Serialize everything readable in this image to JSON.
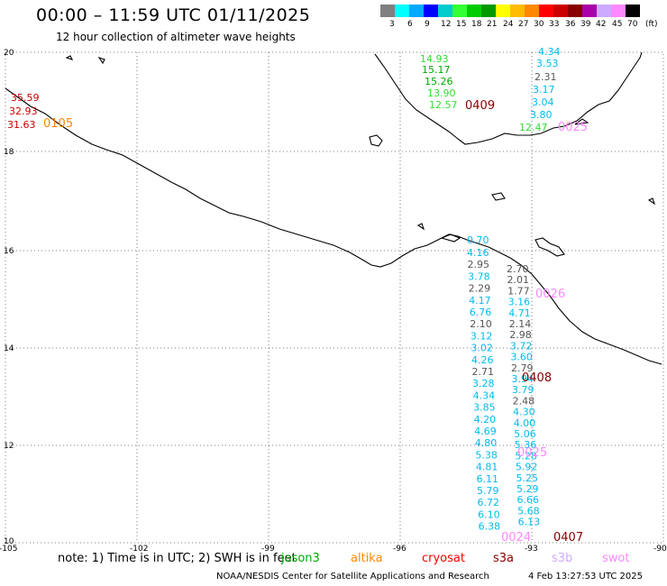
{
  "header": {
    "title": "00:00 – 11:59 UTC 01/11/2025",
    "subtitle": "12 hour collection of altimeter wave heights"
  },
  "legend": {
    "unit": "(ft)",
    "colors": [
      "#808080",
      "#00ffff",
      "#00aaff",
      "#0000ff",
      "#00cccc",
      "#33ff33",
      "#00cc00",
      "#009900",
      "#ffff00",
      "#ffbb00",
      "#ff8800",
      "#ff0000",
      "#cc0000",
      "#880000",
      "#aa00aa",
      "#ccaaff",
      "#ff88ff",
      "#000000"
    ],
    "labels": [
      "3",
      "6",
      "9",
      "12",
      "15",
      "18",
      "21",
      "24",
      "27",
      "30",
      "33",
      "36",
      "39",
      "42",
      "45",
      "70"
    ]
  },
  "axes": {
    "lon_labels": [
      "-105",
      "-102",
      "-99",
      "-96",
      "-93",
      "-90"
    ],
    "lat_labels": [
      "20",
      "18",
      "16",
      "14",
      "12",
      "10"
    ]
  },
  "passes": [
    {
      "id": "0105",
      "color": "#ff8800"
    },
    {
      "id": "0409",
      "color": "#880000"
    },
    {
      "id": "0025",
      "color": "#ff88ff"
    },
    {
      "id": "0408",
      "color": "#880000"
    },
    {
      "id": "0026",
      "color": "#ff88ff"
    },
    {
      "id": "0025b",
      "label": "0025",
      "color": "#ff88ff"
    },
    {
      "id": "0407",
      "color": "#880000"
    },
    {
      "id": "0024",
      "color": "#ff88ff"
    }
  ],
  "readings": {
    "west": [
      {
        "v": "35.59",
        "c": "#cc0000"
      },
      {
        "v": "32.93",
        "c": "#cc0000"
      },
      {
        "v": "31.63",
        "c": "#cc0000"
      }
    ],
    "north_green": [
      {
        "v": "14.93",
        "c": "#33dd33"
      },
      {
        "v": "15.17",
        "c": "#00aa00"
      },
      {
        "v": "15.26",
        "c": "#00aa00"
      },
      {
        "v": "13.90",
        "c": "#33dd33"
      },
      {
        "v": "12.57",
        "c": "#33dd33"
      }
    ],
    "north_right": [
      {
        "v": "4.34",
        "c": "#00bbee"
      },
      {
        "v": "3.53",
        "c": "#00bbee"
      },
      {
        "v": "2.31",
        "c": "#555555"
      },
      {
        "v": "3.17",
        "c": "#00bbee"
      },
      {
        "v": "3.04",
        "c": "#00bbee"
      },
      {
        "v": "3.80",
        "c": "#00bbee"
      },
      {
        "v": "12.47",
        "c": "#33dd33"
      }
    ],
    "track_a": [
      {
        "v": "4.16",
        "c": "#00bbee"
      },
      {
        "v": "2.95",
        "c": "#555555"
      },
      {
        "v": "3.78",
        "c": "#00bbee"
      },
      {
        "v": "2.29",
        "c": "#555555"
      },
      {
        "v": "4.17",
        "c": "#00bbee"
      },
      {
        "v": "6.76",
        "c": "#00bbee"
      },
      {
        "v": "2.10",
        "c": "#555555"
      },
      {
        "v": "3.12",
        "c": "#00bbee"
      },
      {
        "v": "3.02",
        "c": "#00bbee"
      },
      {
        "v": "4.26",
        "c": "#00bbee"
      },
      {
        "v": "2.71",
        "c": "#555555"
      },
      {
        "v": "3.28",
        "c": "#00bbee"
      },
      {
        "v": "4.34",
        "c": "#00bbee"
      },
      {
        "v": "3.85",
        "c": "#00bbee"
      },
      {
        "v": "4.20",
        "c": "#00bbee"
      },
      {
        "v": "4.69",
        "c": "#00bbee"
      },
      {
        "v": "4.80",
        "c": "#00bbee"
      },
      {
        "v": "5.38",
        "c": "#00bbee"
      },
      {
        "v": "4.81",
        "c": "#00bbee"
      },
      {
        "v": "6.11",
        "c": "#00bbee"
      },
      {
        "v": "5.79",
        "c": "#00bbee"
      },
      {
        "v": "6.72",
        "c": "#00bbee"
      },
      {
        "v": "6.10",
        "c": "#00bbee"
      },
      {
        "v": "6.38",
        "c": "#00bbee"
      }
    ],
    "track_b": [
      {
        "v": "2.70",
        "c": "#555555"
      },
      {
        "v": "2.01",
        "c": "#555555"
      },
      {
        "v": "1.77",
        "c": "#555555"
      },
      {
        "v": "3.16",
        "c": "#00bbee"
      },
      {
        "v": "4.71",
        "c": "#00bbee"
      },
      {
        "v": "2.14",
        "c": "#555555"
      },
      {
        "v": "2.98",
        "c": "#555555"
      },
      {
        "v": "3.72",
        "c": "#00bbee"
      },
      {
        "v": "3.60",
        "c": "#00bbee"
      },
      {
        "v": "2.79",
        "c": "#555555"
      },
      {
        "v": "3.94",
        "c": "#00bbee"
      },
      {
        "v": "3.79",
        "c": "#00bbee"
      },
      {
        "v": "2.48",
        "c": "#555555"
      },
      {
        "v": "4.30",
        "c": "#00bbee"
      },
      {
        "v": "4.00",
        "c": "#00bbee"
      },
      {
        "v": "5.06",
        "c": "#00bbee"
      },
      {
        "v": "5.36",
        "c": "#00bbee"
      },
      {
        "v": "5.28",
        "c": "#00bbee"
      },
      {
        "v": "5.92",
        "c": "#00bbee"
      },
      {
        "v": "5.25",
        "c": "#00bbee"
      },
      {
        "v": "5.29",
        "c": "#00bbee"
      },
      {
        "v": "6.66",
        "c": "#00bbee"
      },
      {
        "v": "5.68",
        "c": "#00bbee"
      },
      {
        "v": "6.13",
        "c": "#00bbee"
      }
    ],
    "misc": [
      {
        "v": "0.70",
        "c": "#00bbee"
      }
    ]
  },
  "footer": {
    "note": "note:  1) Time is in UTC;  2) SWH is in feet",
    "satellites": [
      {
        "name": "jason3",
        "color": "#00aa00"
      },
      {
        "name": "altika",
        "color": "#ff8800"
      },
      {
        "name": "cryosat",
        "color": "#ff0000"
      },
      {
        "name": "s3a",
        "color": "#880000"
      },
      {
        "name": "s3b",
        "color": "#ccaaff"
      },
      {
        "name": "swot",
        "color": "#ff88ff"
      }
    ],
    "credit": "NOAA/NESDIS Center for Satellite Applications and Research",
    "generated": "4 Feb 13:27:53 UTC 2025"
  }
}
